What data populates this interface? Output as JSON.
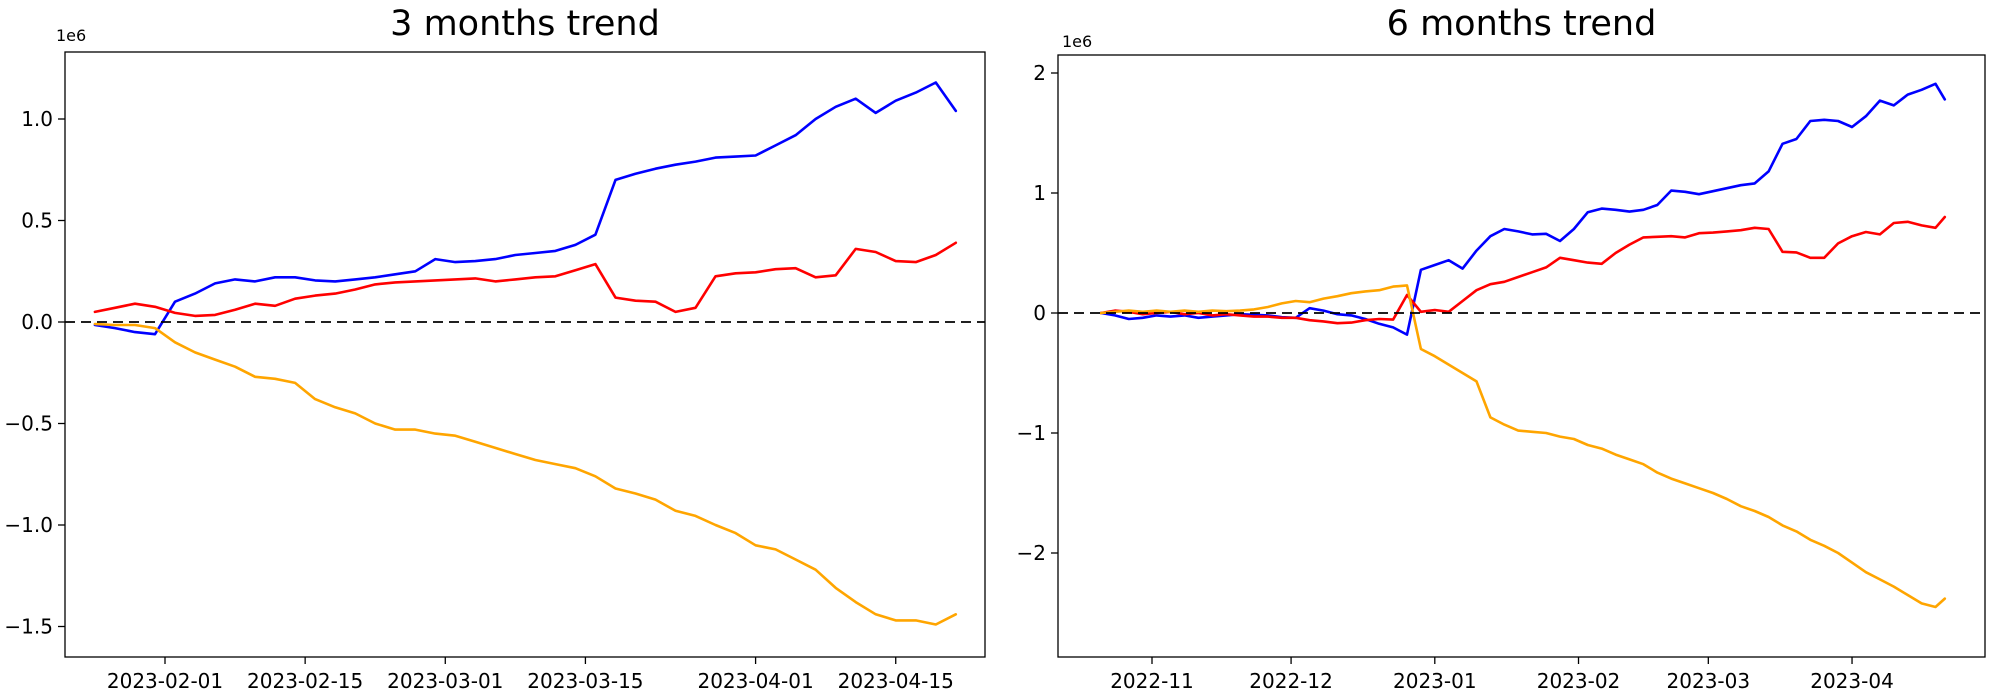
{
  "figure": {
    "background": "#ffffff",
    "text_color": "#000000",
    "zero_line_color": "#000000"
  },
  "chart_data": [
    {
      "type": "line",
      "title": "3 months trend",
      "scale_label": "1e6",
      "grid": false,
      "legend": null,
      "x_axis": {
        "tick_labels": [
          "2023-02-01",
          "2023-02-15",
          "2023-03-01",
          "2023-03-15",
          "2023-04-01",
          "2023-04-15"
        ],
        "tick_dates": [
          "2023-02-01",
          "2023-02-15",
          "2023-03-01",
          "2023-03-15",
          "2023-04-01",
          "2023-04-15"
        ]
      },
      "y_axis": {
        "unit": "1e6",
        "tick_labels": [
          "1.0",
          "0.5",
          "0.0",
          "−0.5",
          "−1.0",
          "−1.5"
        ],
        "tick_values": [
          1.0,
          0.5,
          0.0,
          -0.5,
          -1.0,
          -1.5
        ],
        "ylim": [
          -1.66,
          1.33
        ]
      },
      "zero_line": {
        "value": 0,
        "style": "dashed",
        "color": "#000000"
      },
      "dates": [
        "2023-01-25",
        "2023-01-27",
        "2023-01-29",
        "2023-01-31",
        "2023-02-02",
        "2023-02-04",
        "2023-02-06",
        "2023-02-08",
        "2023-02-10",
        "2023-02-12",
        "2023-02-14",
        "2023-02-16",
        "2023-02-18",
        "2023-02-20",
        "2023-02-22",
        "2023-02-24",
        "2023-02-26",
        "2023-02-28",
        "2023-03-02",
        "2023-03-04",
        "2023-03-06",
        "2023-03-08",
        "2023-03-10",
        "2023-03-12",
        "2023-03-14",
        "2023-03-16",
        "2023-03-18",
        "2023-03-20",
        "2023-03-22",
        "2023-03-24",
        "2023-03-26",
        "2023-03-28",
        "2023-03-30",
        "2023-04-01",
        "2023-04-03",
        "2023-04-05",
        "2023-04-07",
        "2023-04-09",
        "2023-04-11",
        "2023-04-13",
        "2023-04-15",
        "2023-04-17",
        "2023-04-19",
        "2023-04-21"
      ],
      "series": [
        {
          "name": "blue",
          "color": "#0000ff",
          "values": [
            -0.015,
            -0.03,
            -0.05,
            -0.06,
            0.1,
            0.14,
            0.19,
            0.21,
            0.2,
            0.22,
            0.22,
            0.205,
            0.2,
            0.21,
            0.22,
            0.235,
            0.25,
            0.31,
            0.295,
            0.3,
            0.31,
            0.33,
            0.34,
            0.35,
            0.38,
            0.43,
            0.7,
            0.73,
            0.755,
            0.775,
            0.79,
            0.81,
            0.815,
            0.82,
            0.87,
            0.92,
            1.0,
            1.06,
            1.1,
            1.03,
            1.09,
            1.13,
            1.18,
            1.04
          ]
        },
        {
          "name": "red",
          "color": "#ff0000",
          "values": [
            0.05,
            0.07,
            0.09,
            0.075,
            0.045,
            0.03,
            0.035,
            0.06,
            0.09,
            0.08,
            0.115,
            0.13,
            0.14,
            0.16,
            0.185,
            0.195,
            0.2,
            0.205,
            0.21,
            0.215,
            0.2,
            0.21,
            0.22,
            0.225,
            0.255,
            0.285,
            0.12,
            0.105,
            0.1,
            0.05,
            0.07,
            0.225,
            0.24,
            0.245,
            0.26,
            0.265,
            0.22,
            0.23,
            0.36,
            0.345,
            0.3,
            0.295,
            0.33,
            0.39
          ]
        },
        {
          "name": "orange",
          "color": "#ffa500",
          "values": [
            -0.01,
            -0.015,
            -0.015,
            -0.03,
            -0.1,
            -0.15,
            -0.185,
            -0.22,
            -0.27,
            -0.28,
            -0.3,
            -0.38,
            -0.42,
            -0.45,
            -0.5,
            -0.53,
            -0.53,
            -0.55,
            -0.56,
            -0.59,
            -0.62,
            -0.65,
            -0.68,
            -0.7,
            -0.72,
            -0.76,
            -0.82,
            -0.845,
            -0.875,
            -0.93,
            -0.955,
            -1.0,
            -1.04,
            -1.1,
            -1.12,
            -1.17,
            -1.22,
            -1.31,
            -1.38,
            -1.44,
            -1.47,
            -1.47,
            -1.49,
            -1.44
          ]
        }
      ]
    },
    {
      "type": "line",
      "title": "6 months trend",
      "scale_label": "1e6",
      "grid": false,
      "legend": null,
      "x_axis": {
        "tick_labels": [
          "2022-11",
          "2022-12",
          "2023-01",
          "2023-02",
          "2023-03",
          "2023-04"
        ],
        "tick_dates": [
          "2022-11-01",
          "2022-12-01",
          "2023-01-01",
          "2023-02-01",
          "2023-03-01",
          "2023-04-01"
        ]
      },
      "y_axis": {
        "unit": "1e6",
        "tick_labels": [
          "2",
          "1",
          "0",
          "−1",
          "−2"
        ],
        "tick_values": [
          2,
          1,
          0,
          -1,
          -2
        ],
        "ylim": [
          -2.87,
          2.15
        ]
      },
      "zero_line": {
        "value": 0,
        "style": "dashed",
        "color": "#000000"
      },
      "dates": [
        "2022-10-21",
        "2022-10-24",
        "2022-10-27",
        "2022-10-30",
        "2022-11-02",
        "2022-11-05",
        "2022-11-08",
        "2022-11-11",
        "2022-11-14",
        "2022-11-17",
        "2022-11-20",
        "2022-11-23",
        "2022-11-26",
        "2022-11-29",
        "2022-12-02",
        "2022-12-05",
        "2022-12-08",
        "2022-12-11",
        "2022-12-14",
        "2022-12-17",
        "2022-12-20",
        "2022-12-23",
        "2022-12-26",
        "2022-12-29",
        "2023-01-01",
        "2023-01-04",
        "2023-01-07",
        "2023-01-10",
        "2023-01-13",
        "2023-01-16",
        "2023-01-19",
        "2023-01-22",
        "2023-01-25",
        "2023-01-28",
        "2023-01-31",
        "2023-02-03",
        "2023-02-06",
        "2023-02-09",
        "2023-02-12",
        "2023-02-15",
        "2023-02-18",
        "2023-02-21",
        "2023-02-24",
        "2023-02-27",
        "2023-03-02",
        "2023-03-05",
        "2023-03-08",
        "2023-03-11",
        "2023-03-14",
        "2023-03-17",
        "2023-03-20",
        "2023-03-23",
        "2023-03-26",
        "2023-03-29",
        "2023-04-01",
        "2023-04-04",
        "2023-04-07",
        "2023-04-10",
        "2023-04-13",
        "2023-04-16",
        "2023-04-19",
        "2023-04-21"
      ],
      "series": [
        {
          "name": "blue",
          "color": "#0000ff",
          "values": [
            0.0,
            -0.02,
            -0.05,
            -0.04,
            -0.02,
            -0.03,
            -0.02,
            -0.04,
            -0.03,
            -0.02,
            -0.01,
            -0.015,
            -0.02,
            -0.035,
            -0.04,
            0.04,
            0.02,
            -0.01,
            -0.02,
            -0.05,
            -0.09,
            -0.12,
            -0.18,
            0.36,
            0.4,
            0.44,
            0.37,
            0.52,
            0.64,
            0.7,
            0.68,
            0.655,
            0.66,
            0.6,
            0.7,
            0.84,
            0.87,
            0.86,
            0.845,
            0.86,
            0.9,
            1.02,
            1.01,
            0.99,
            1.015,
            1.04,
            1.065,
            1.08,
            1.18,
            1.41,
            1.45,
            1.6,
            1.61,
            1.6,
            1.55,
            1.64,
            1.77,
            1.73,
            1.82,
            1.86,
            1.91,
            1.78
          ]
        },
        {
          "name": "red",
          "color": "#ff0000",
          "values": [
            0.0,
            0.02,
            0.01,
            -0.01,
            0.0,
            0.01,
            -0.01,
            0.0,
            -0.02,
            -0.01,
            -0.02,
            -0.03,
            -0.03,
            -0.04,
            -0.04,
            -0.06,
            -0.07,
            -0.085,
            -0.08,
            -0.06,
            -0.05,
            -0.055,
            0.15,
            0.01,
            0.025,
            0.01,
            0.1,
            0.19,
            0.24,
            0.26,
            0.3,
            0.34,
            0.38,
            0.46,
            0.44,
            0.42,
            0.41,
            0.5,
            0.57,
            0.63,
            0.635,
            0.64,
            0.63,
            0.665,
            0.67,
            0.68,
            0.69,
            0.71,
            0.7,
            0.51,
            0.505,
            0.46,
            0.46,
            0.58,
            0.64,
            0.675,
            0.655,
            0.75,
            0.76,
            0.73,
            0.71,
            0.8
          ]
        },
        {
          "name": "orange",
          "color": "#ffa500",
          "values": [
            0.0,
            0.01,
            0.02,
            0.01,
            0.02,
            0.01,
            0.02,
            0.01,
            0.02,
            0.015,
            0.02,
            0.03,
            0.05,
            0.08,
            0.1,
            0.09,
            0.12,
            0.14,
            0.165,
            0.18,
            0.19,
            0.22,
            0.23,
            -0.3,
            -0.36,
            -0.43,
            -0.5,
            -0.57,
            -0.87,
            -0.93,
            -0.98,
            -0.99,
            -1.0,
            -1.03,
            -1.05,
            -1.1,
            -1.13,
            -1.18,
            -1.22,
            -1.26,
            -1.33,
            -1.38,
            -1.42,
            -1.46,
            -1.5,
            -1.55,
            -1.61,
            -1.65,
            -1.7,
            -1.77,
            -1.82,
            -1.89,
            -1.94,
            -2.0,
            -2.08,
            -2.16,
            -2.22,
            -2.28,
            -2.35,
            -2.42,
            -2.45,
            -2.38
          ]
        }
      ]
    }
  ]
}
